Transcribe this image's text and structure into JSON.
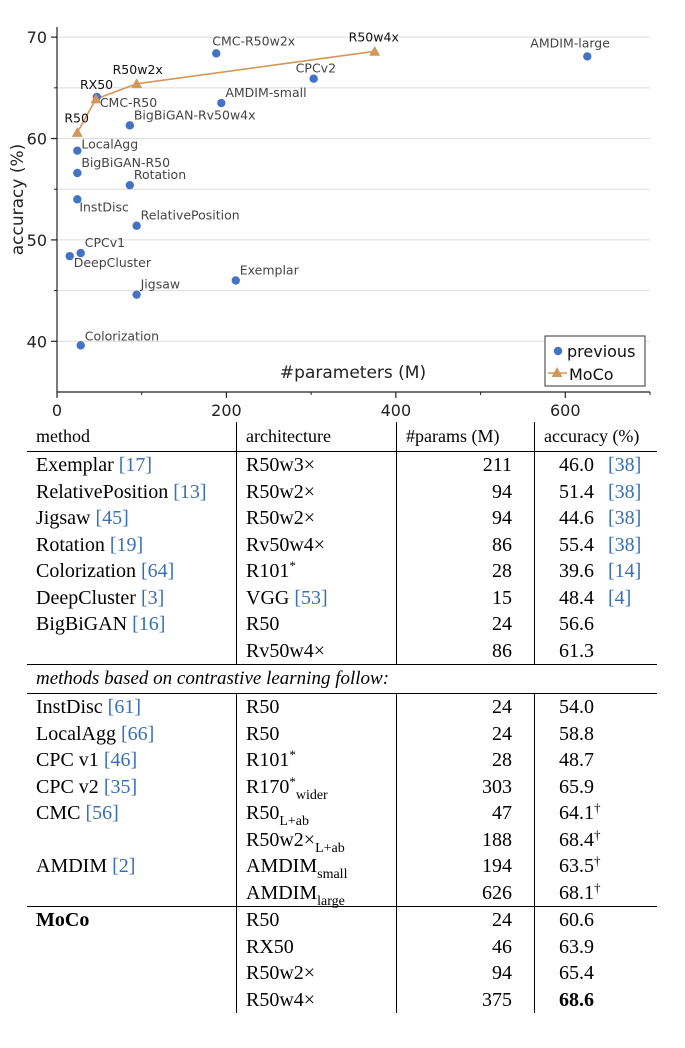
{
  "chart_data": {
    "type": "scatter",
    "xlabel": "#parameters (M)",
    "ylabel": "accuracy (%)",
    "xlim": [
      0,
      700
    ],
    "ylim": [
      35,
      71
    ],
    "xticks": [
      0,
      200,
      400,
      600
    ],
    "yticks": [
      40,
      50,
      60,
      70
    ],
    "grid": true,
    "legend": "bottom-right",
    "series": [
      {
        "name": "previous",
        "marker": "circle",
        "color": "#4472c4",
        "points": [
          {
            "label": "Exemplar",
            "x": 211,
            "y": 46.0
          },
          {
            "label": "RelativePosition",
            "x": 94,
            "y": 51.4
          },
          {
            "label": "Jigsaw",
            "x": 94,
            "y": 44.6
          },
          {
            "label": "Rotation",
            "x": 86,
            "y": 55.4
          },
          {
            "label": "Colorization",
            "x": 28,
            "y": 39.6
          },
          {
            "label": "DeepCluster",
            "x": 15,
            "y": 48.4
          },
          {
            "label": "BigBiGAN-R50",
            "x": 24,
            "y": 56.6
          },
          {
            "label": "BigBiGAN-Rv50w4x",
            "x": 86,
            "y": 61.3
          },
          {
            "label": "InstDisc",
            "x": 24,
            "y": 54.0
          },
          {
            "label": "LocalAgg",
            "x": 24,
            "y": 58.8
          },
          {
            "label": "CPCv1",
            "x": 28,
            "y": 48.7
          },
          {
            "label": "CPCv2",
            "x": 303,
            "y": 65.9
          },
          {
            "label": "CMC-R50",
            "x": 47,
            "y": 64.1
          },
          {
            "label": "CMC-R50w2x",
            "x": 188,
            "y": 68.4
          },
          {
            "label": "AMDIM-small",
            "x": 194,
            "y": 63.5
          },
          {
            "label": "AMDIM-large",
            "x": 626,
            "y": 68.1
          }
        ]
      },
      {
        "name": "MoCo",
        "marker": "triangle",
        "color": "#d4975a",
        "points": [
          {
            "label": "R50",
            "x": 24,
            "y": 60.6
          },
          {
            "label": "RX50",
            "x": 46,
            "y": 63.9
          },
          {
            "label": "R50w2x",
            "x": 94,
            "y": 65.4
          },
          {
            "label": "R50w4x",
            "x": 375,
            "y": 68.6
          }
        ]
      }
    ]
  },
  "table": {
    "headers": [
      "method",
      "architecture",
      "#params (M)",
      "accuracy (%)"
    ],
    "section_note": "methods based on contrastive learning follow:",
    "groups": [
      {
        "rows": [
          {
            "method": "Exemplar",
            "ref": "[17]",
            "arch": "R50w3×",
            "params": "211",
            "acc": "46.0",
            "accref": "[38]"
          },
          {
            "method": "RelativePosition",
            "ref": "[13]",
            "arch": "R50w2×",
            "params": "94",
            "acc": "51.4",
            "accref": "[38]"
          },
          {
            "method": "Jigsaw",
            "ref": "[45]",
            "arch": "R50w2×",
            "params": "94",
            "acc": "44.6",
            "accref": "[38]"
          },
          {
            "method": "Rotation",
            "ref": "[19]",
            "arch": "Rv50w4×",
            "params": "86",
            "acc": "55.4",
            "accref": "[38]"
          },
          {
            "method": "Colorization",
            "ref": "[64]",
            "arch": "R101",
            "archsup": "*",
            "params": "28",
            "acc": "39.6",
            "accref": "[14]"
          },
          {
            "method": "DeepCluster",
            "ref": "[3]",
            "arch": "VGG",
            "archref": "[53]",
            "params": "15",
            "acc": "48.4",
            "accref": "[4]"
          },
          {
            "method": "BigBiGAN",
            "ref": "[16]",
            "arch": "R50",
            "params": "24",
            "acc": "56.6"
          },
          {
            "method": "",
            "arch": "Rv50w4×",
            "params": "86",
            "acc": "61.3"
          }
        ]
      },
      {
        "rows": [
          {
            "method": "InstDisc",
            "ref": "[61]",
            "arch": "R50",
            "params": "24",
            "acc": "54.0"
          },
          {
            "method": "LocalAgg",
            "ref": "[66]",
            "arch": "R50",
            "params": "24",
            "acc": "58.8"
          },
          {
            "method": "CPC v1",
            "ref": "[46]",
            "arch": "R101",
            "archsup": "*",
            "params": "28",
            "acc": "48.7"
          },
          {
            "method": "CPC v2",
            "ref": "[35]",
            "arch": "R170",
            "archsup": "*",
            "archsub": "wider",
            "params": "303",
            "acc": "65.9"
          },
          {
            "method": "CMC",
            "ref": "[56]",
            "arch": "R50",
            "archsub": "L+ab",
            "params": "47",
            "acc": "64.1",
            "accsup": "†"
          },
          {
            "method": "",
            "arch": "R50w2×",
            "archsub": "L+ab",
            "params": "188",
            "acc": "68.4",
            "accsup": "†"
          },
          {
            "method": "AMDIM",
            "ref": "[2]",
            "arch": "AMDIM",
            "archsub": "small",
            "params": "194",
            "acc": "63.5",
            "accsup": "†"
          },
          {
            "method": "",
            "arch": "AMDIM",
            "archsub": "large",
            "params": "626",
            "acc": "68.1",
            "accsup": "†"
          }
        ]
      },
      {
        "rows": [
          {
            "method": "MoCo",
            "bold": true,
            "arch": "R50",
            "params": "24",
            "acc": "60.6"
          },
          {
            "method": "",
            "arch": "RX50",
            "params": "46",
            "acc": "63.9"
          },
          {
            "method": "",
            "arch": "R50w2×",
            "params": "94",
            "acc": "65.4"
          },
          {
            "method": "",
            "arch": "R50w4×",
            "params": "375",
            "acc": "68.6",
            "accbold": true
          }
        ]
      }
    ]
  }
}
